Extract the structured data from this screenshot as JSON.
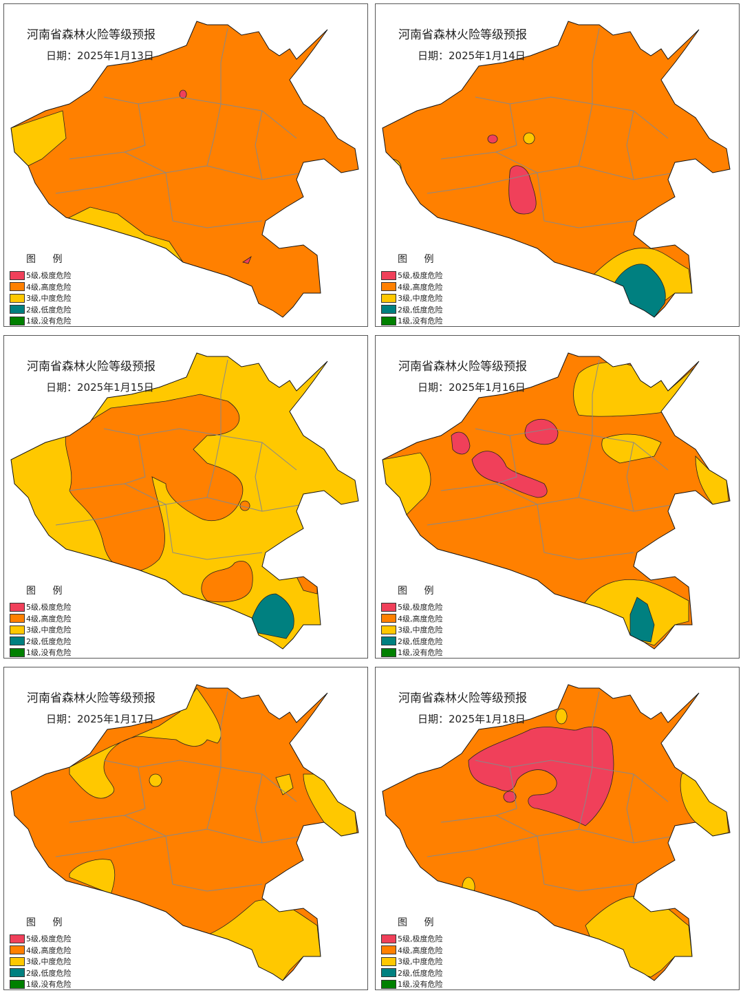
{
  "legend": {
    "title": "图 例",
    "items": [
      {
        "label": "5级,极度危险",
        "level": 5,
        "color": "#f0405a"
      },
      {
        "label": "4级,高度危险",
        "level": 4,
        "color": "#ff8000"
      },
      {
        "label": "3级,中度危险",
        "level": 3,
        "color": "#ffc800"
      },
      {
        "label": "2级,低度危险",
        "level": 2,
        "color": "#008080"
      },
      {
        "label": "1级,没有危险",
        "level": 1,
        "color": "#008000"
      }
    ]
  },
  "panels": [
    {
      "title": "河南省森林火险等级预报",
      "date": "日期：2025年1月13日",
      "dominant_level": 4,
      "other_levels": [
        3,
        5
      ]
    },
    {
      "title": "河南省森林火险等级预报",
      "date": "日期：2025年1月14日",
      "dominant_level": 4,
      "other_levels": [
        5,
        3,
        2
      ]
    },
    {
      "title": "河南省森林火险等级预报",
      "date": "日期：2025年1月15日",
      "dominant_level": 3,
      "other_levels": [
        4,
        2
      ]
    },
    {
      "title": "河南省森林火险等级预报",
      "date": "日期：2025年1月16日",
      "dominant_level": 4,
      "other_levels": [
        5,
        3,
        2
      ]
    },
    {
      "title": "河南省森林火险等级预报",
      "date": "日期：2025年1月17日",
      "dominant_level": 4,
      "other_levels": [
        3
      ]
    },
    {
      "title": "河南省森林火险等级预报",
      "date": "日期：2025年1月18日",
      "dominant_level": 4,
      "other_levels": [
        5,
        3
      ]
    }
  ]
}
